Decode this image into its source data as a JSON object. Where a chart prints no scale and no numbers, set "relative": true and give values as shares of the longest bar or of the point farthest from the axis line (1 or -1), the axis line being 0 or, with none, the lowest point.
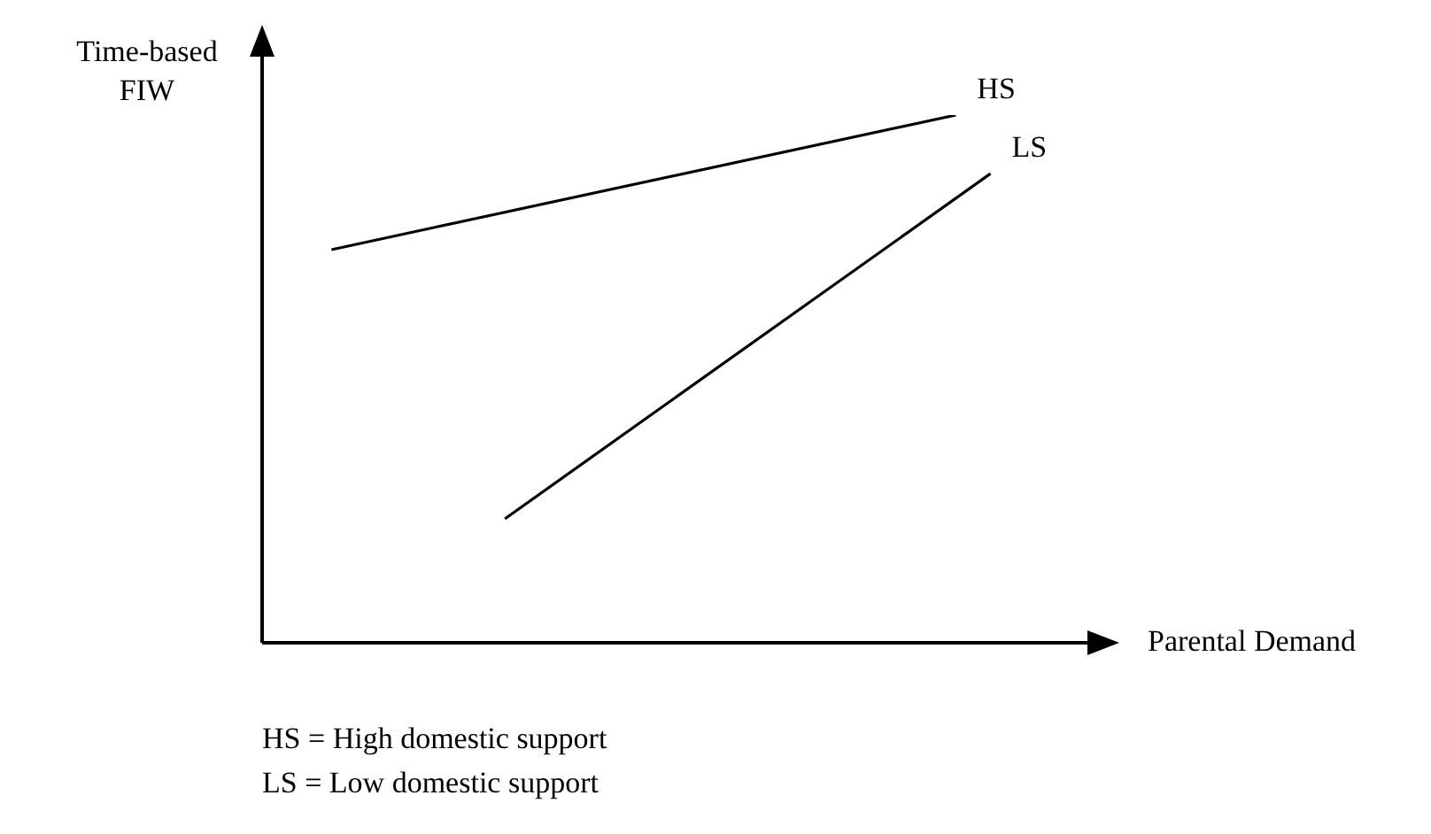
{
  "chart_data": {
    "type": "line",
    "relative": true,
    "xlabel": "Parental Demand",
    "ylabel": "Time-based FIW",
    "legend": false,
    "marker": "none",
    "line_style": "solid",
    "categories": [
      null,
      null,
      null,
      null,
      null,
      null,
      null,
      null,
      null,
      null,
      null,
      null,
      null,
      null,
      null,
      null,
      null,
      null,
      null,
      null,
      null,
      null,
      null,
      null,
      null
    ],
    "series": [
      {
        "name": "HS",
        "color": "#000000",
        "values": [
          null,
          null,
          0.745,
          null,
          null,
          null,
          null,
          null,
          null,
          null,
          null,
          null,
          null,
          null,
          null,
          null,
          null,
          null,
          null,
          null,
          1,
          null,
          null,
          null,
          null
        ]
      },
      {
        "name": "LS",
        "color": "#000000",
        "values": [
          null,
          null,
          null,
          null,
          null,
          null,
          null,
          0.235,
          null,
          null,
          null,
          null,
          null,
          null,
          null,
          null,
          null,
          null,
          null,
          null,
          null,
          0.889,
          null,
          null,
          null
        ]
      }
    ],
    "annotations": [
      "HS = High domestic support",
      "LS = Low domestic support"
    ]
  }
}
